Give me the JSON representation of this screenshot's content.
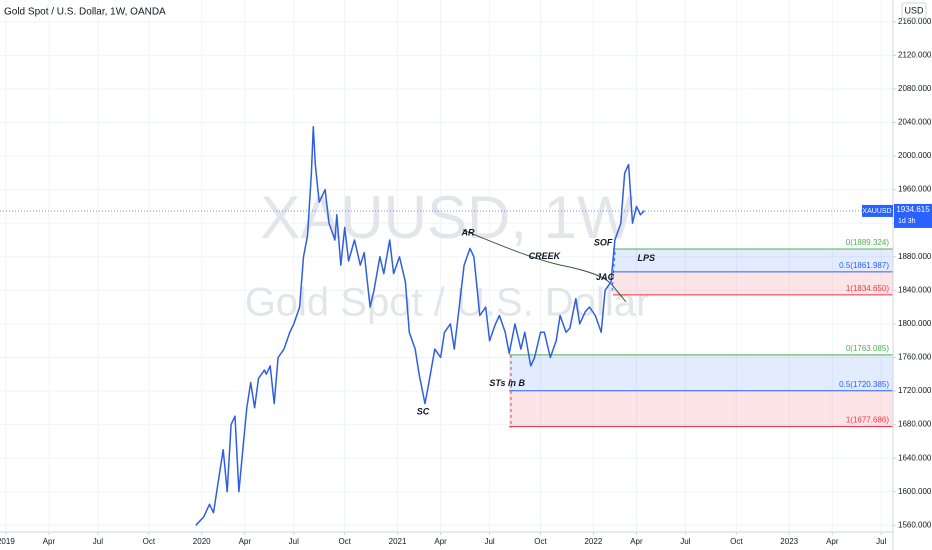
{
  "chart_data": {
    "type": "line",
    "title": "Gold Spot / U.S. Dollar, 1W, OANDA",
    "watermark_symbol": "XAUUSD, 1W",
    "watermark_name": "Gold Spot / U.S. Dollar",
    "currency": "USD",
    "symbol": "XAUUSD",
    "last_price": 1934.615,
    "countdown": "1d 3h",
    "x": [
      2019.97,
      2020.01,
      2020.04,
      2020.06,
      2020.09,
      2020.11,
      2020.13,
      2020.15,
      2020.17,
      2020.19,
      2020.21,
      2020.23,
      2020.25,
      2020.27,
      2020.29,
      2020.32,
      2020.33,
      2020.35,
      2020.37,
      2020.39,
      2020.42,
      2020.45,
      2020.47,
      2020.5,
      2020.52,
      2020.54,
      2020.56,
      2020.57,
      2020.58,
      2020.6,
      2020.63,
      2020.65,
      2020.68,
      2020.69,
      2020.71,
      2020.73,
      2020.75,
      2020.78,
      2020.81,
      2020.83,
      2020.86,
      2020.88,
      2020.91,
      2020.93,
      2020.96,
      2020.98,
      2021.01,
      2021.04,
      2021.06,
      2021.09,
      2021.11,
      2021.14,
      2021.16,
      2021.19,
      2021.22,
      2021.24,
      2021.27,
      2021.29,
      2021.32,
      2021.34,
      2021.37,
      2021.39,
      2021.42,
      2021.45,
      2021.47,
      2021.5,
      2021.52,
      2021.55,
      2021.57,
      2021.6,
      2021.63,
      2021.65,
      2021.68,
      2021.7,
      2021.73,
      2021.75,
      2021.78,
      2021.81,
      2021.83,
      2021.86,
      2021.88,
      2021.91,
      2021.93,
      2021.96,
      2021.98,
      2022.01,
      2022.04,
      2022.06,
      2022.09,
      2022.11,
      2022.14,
      2022.16,
      2022.18,
      2022.2,
      2022.22,
      2022.24,
      2022.26
    ],
    "series": [
      {
        "name": "XAUUSD",
        "color": "#2f5fe0",
        "values": [
          1560,
          1570,
          1585,
          1575,
          1620,
          1650,
          1600,
          1680,
          1690,
          1600,
          1650,
          1700,
          1730,
          1700,
          1735,
          1745,
          1740,
          1750,
          1705,
          1760,
          1770,
          1790,
          1800,
          1820,
          1880,
          1905,
          1980,
          2035,
          1990,
          1945,
          1960,
          1920,
          1900,
          1930,
          1870,
          1915,
          1875,
          1900,
          1870,
          1885,
          1820,
          1840,
          1880,
          1860,
          1900,
          1860,
          1880,
          1850,
          1790,
          1770,
          1740,
          1705,
          1730,
          1770,
          1760,
          1790,
          1800,
          1770,
          1830,
          1870,
          1890,
          1880,
          1810,
          1820,
          1780,
          1800,
          1810,
          1790,
          1765,
          1800,
          1770,
          1790,
          1750,
          1760,
          1790,
          1790,
          1760,
          1780,
          1810,
          1790,
          1795,
          1830,
          1800,
          1815,
          1820,
          1810,
          1790,
          1840,
          1850,
          1900,
          1920,
          1980,
          1990,
          1920,
          1940,
          1930,
          1935
        ]
      }
    ],
    "xlim": [
      2018.97,
      2023.53
    ],
    "ylim": [
      1552,
      2186
    ],
    "xticks": [
      {
        "value": 2019.0,
        "label": "2019"
      },
      {
        "value": 2019.22,
        "label": "Apr"
      },
      {
        "value": 2019.47,
        "label": "Jul"
      },
      {
        "value": 2019.73,
        "label": "Oct"
      },
      {
        "value": 2020.0,
        "label": "2020"
      },
      {
        "value": 2020.22,
        "label": "Apr"
      },
      {
        "value": 2020.47,
        "label": "Jul"
      },
      {
        "value": 2020.73,
        "label": "Oct"
      },
      {
        "value": 2021.0,
        "label": "2021"
      },
      {
        "value": 2021.22,
        "label": "Apr"
      },
      {
        "value": 2021.47,
        "label": "Jul"
      },
      {
        "value": 2021.73,
        "label": "Oct"
      },
      {
        "value": 2022.0,
        "label": "2022"
      },
      {
        "value": 2022.22,
        "label": "Apr"
      },
      {
        "value": 2022.47,
        "label": "Jul"
      },
      {
        "value": 2022.73,
        "label": "Oct"
      },
      {
        "value": 2023.0,
        "label": "2023"
      },
      {
        "value": 2023.22,
        "label": "Apr"
      },
      {
        "value": 2023.47,
        "label": "Jul"
      }
    ],
    "yticks": [
      {
        "value": 1560,
        "label": "1560.000"
      },
      {
        "value": 1600,
        "label": "1600.000"
      },
      {
        "value": 1640,
        "label": "1640.000"
      },
      {
        "value": 1680,
        "label": "1680.000"
      },
      {
        "value": 1720,
        "label": "1720.000"
      },
      {
        "value": 1760,
        "label": "1760.000"
      },
      {
        "value": 1800,
        "label": "1800.000"
      },
      {
        "value": 1840,
        "label": "1840.000"
      },
      {
        "value": 1880,
        "label": "1880.000"
      },
      {
        "value": 1920,
        "label": "1920.000"
      },
      {
        "value": 1960,
        "label": "1960.000"
      },
      {
        "value": 2000,
        "label": "2000.000"
      },
      {
        "value": 2040,
        "label": "2040.000"
      },
      {
        "value": 2080,
        "label": "2080.000"
      },
      {
        "value": 2120,
        "label": "2120.000"
      },
      {
        "value": 2160,
        "label": "2160.000"
      }
    ],
    "grid": true,
    "level_colors": [
      "#4caf50",
      "#2962ff",
      "#f23645"
    ],
    "fib_zones": [
      {
        "start": 2022.1,
        "levels": [
          {
            "value": 1889.324,
            "label": "0(1889.324)"
          },
          {
            "value": 1861.987,
            "label": "0.5(1861.987)"
          },
          {
            "value": 1834.65,
            "label": "1(1834.650)"
          }
        ]
      },
      {
        "start": 2021.57,
        "levels": [
          {
            "value": 1763.085,
            "label": "0(1763.085)"
          },
          {
            "value": 1720.385,
            "label": "0.5(1720.385)"
          },
          {
            "value": 1677.686,
            "label": "1(1677.686)"
          }
        ]
      }
    ],
    "annotations": [
      {
        "text": "AR",
        "x": 2021.36,
        "y": 1908
      },
      {
        "text": "CREEK",
        "x": 2021.75,
        "y": 1880
      },
      {
        "text": "SOF",
        "x": 2022.05,
        "y": 1896
      },
      {
        "text": "LPS",
        "x": 2022.27,
        "y": 1878
      },
      {
        "text": "JAC",
        "x": 2022.06,
        "y": 1855
      },
      {
        "text": "SC",
        "x": 2021.13,
        "y": 1695
      },
      {
        "text": "STs in B",
        "x": 2021.56,
        "y": 1729
      }
    ]
  }
}
